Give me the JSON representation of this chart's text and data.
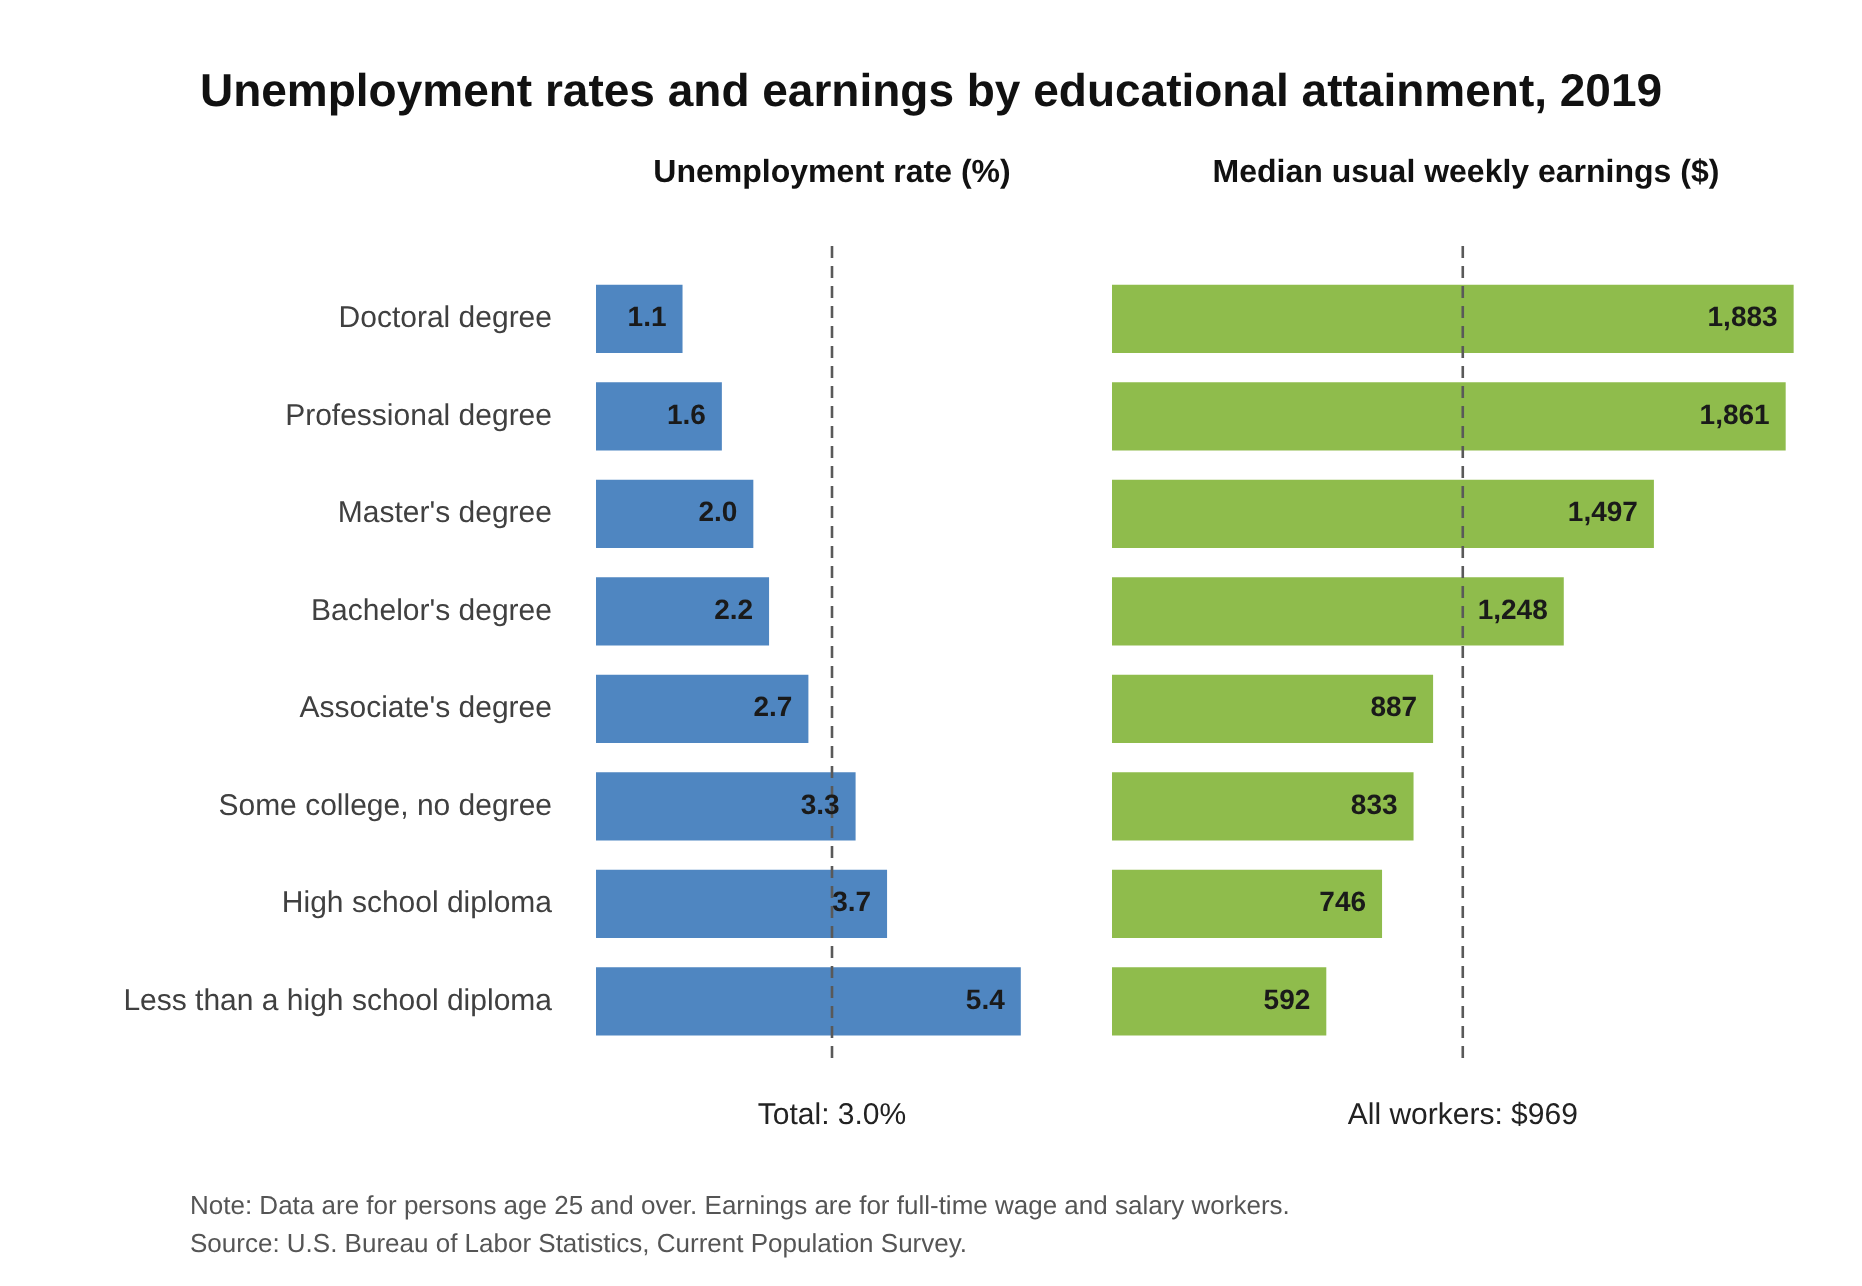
{
  "chart_data": [
    {
      "type": "bar",
      "orientation": "horizontal",
      "title": "Unemployment rates and earnings by educational attainment, 2019",
      "subtitle": "Unemployment rate (%)",
      "categories": [
        "Doctoral degree",
        "Professional degree",
        "Master's degree",
        "Bachelor's degree",
        "Associate's degree",
        "Some college, no degree",
        "High school diploma",
        "Less than a high school diploma"
      ],
      "values": [
        1.1,
        1.6,
        2.0,
        2.2,
        2.7,
        3.3,
        3.7,
        5.4
      ],
      "value_labels": [
        "1.1",
        "1.6",
        "2.0",
        "2.2",
        "2.7",
        "3.3",
        "3.7",
        "5.4"
      ],
      "color": "#4f86c1",
      "tick_labels": "y",
      "ref_lines": [
        {
          "axis": "x",
          "value": 3.0,
          "label": "Total: 3.0%",
          "color": "#595959",
          "line_style": "dashed"
        }
      ]
    },
    {
      "type": "bar",
      "orientation": "horizontal",
      "subtitle": "Median usual weekly earnings ($)",
      "categories": [
        null,
        null,
        null,
        null,
        null,
        null,
        null,
        null
      ],
      "values": [
        1883,
        1861,
        1497,
        1248,
        887,
        833,
        746,
        592
      ],
      "value_labels": [
        "1,883",
        "1,861",
        "1,497",
        "1,248",
        "887",
        "833",
        "746",
        "592"
      ],
      "color": "#8fbc4c",
      "tick_labels": false,
      "ref_lines": [
        {
          "axis": "x",
          "value": 969,
          "label": "All workers: $969",
          "color": "#595959",
          "line_style": "dashed"
        }
      ],
      "annotations": [
        "Note: Data are for persons age 25 and over. Earnings are for full-time wage and salary workers.",
        "Source: U.S. Bureau of Labor Statistics, Current Population Survey."
      ]
    }
  ]
}
